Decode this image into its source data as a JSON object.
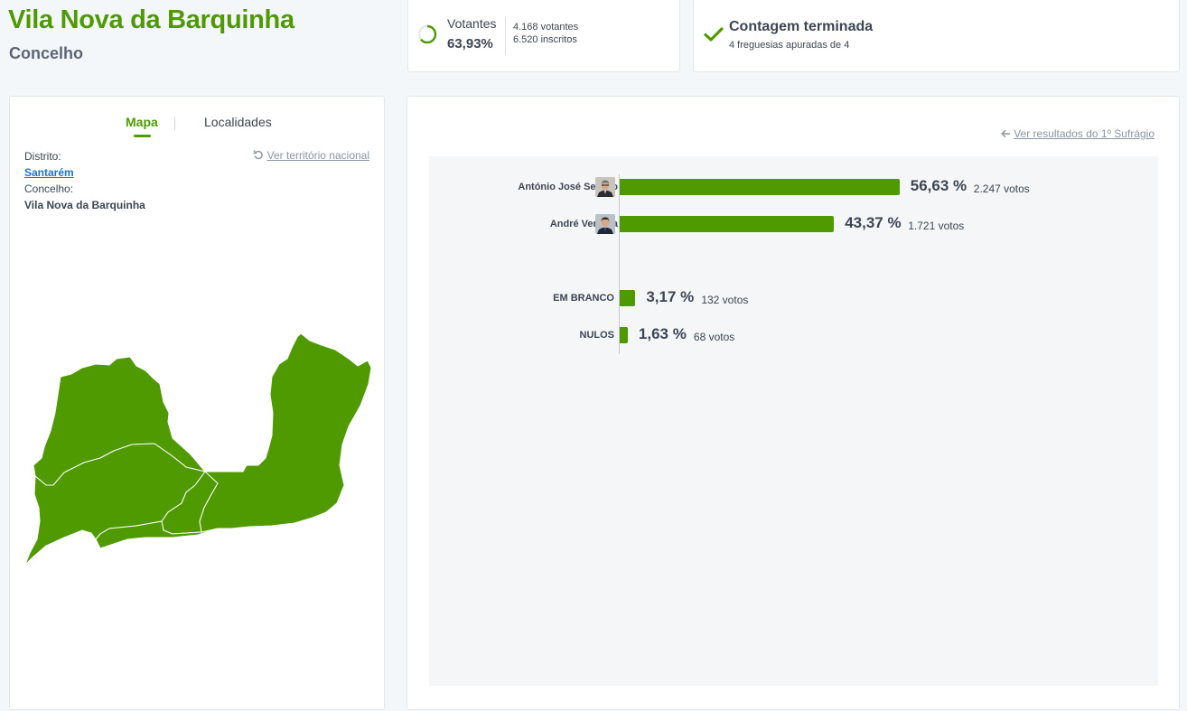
{
  "header": {
    "title": "Vila Nova da Barquinha",
    "subtitle": "Concelho"
  },
  "votantes": {
    "label": "Votantes",
    "percent": "63,93%",
    "votantes_line": "4.168 votantes",
    "inscritos_line": "6.520 inscritos",
    "ring_fraction": 0.6393
  },
  "contagem": {
    "title": "Contagem terminada",
    "subtitle": "4 freguesias apuradas de 4"
  },
  "map_panel": {
    "tabs": {
      "mapa": "Mapa",
      "localidades": "Localidades"
    },
    "distrito_label": "Distrito:",
    "distrito_value": "Santarém",
    "concelho_label": "Concelho:",
    "concelho_value": "Vila Nova da Barquinha",
    "national_link": "Ver território nacional",
    "map_color": "#4f9a00"
  },
  "results": {
    "sufragio_link": "Ver resultados do 1º Sufrágio",
    "bar_color": "#4f9a00",
    "rows": [
      {
        "name": "António José Seguro",
        "percent_label": "56,63 %",
        "votes_label": "2.247 votos",
        "percent": 56.63
      },
      {
        "name": "André Ventura",
        "percent_label": "43,37 %",
        "votes_label": "1.721 votos",
        "percent": 43.37
      },
      {
        "name": "EM BRANCO",
        "percent_label": "3,17 %",
        "votes_label": "132 votos",
        "percent": 3.17
      },
      {
        "name": "NULOS",
        "percent_label": "1,63 %",
        "votes_label": "68 votos",
        "percent": 1.63
      }
    ]
  }
}
